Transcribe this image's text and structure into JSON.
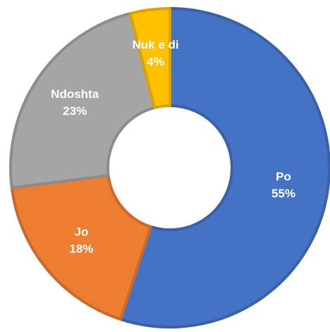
{
  "chart_data": {
    "type": "donut",
    "categories": [
      "Po",
      "Jo",
      "Ndoshta",
      "Nuk e di"
    ],
    "values": [
      55,
      18,
      23,
      4
    ],
    "value_labels": [
      "55%",
      "18%",
      "23%",
      "4%"
    ],
    "colors": [
      "#4472c4",
      "#ed7d31",
      "#a5a5a5",
      "#ffc000"
    ]
  }
}
